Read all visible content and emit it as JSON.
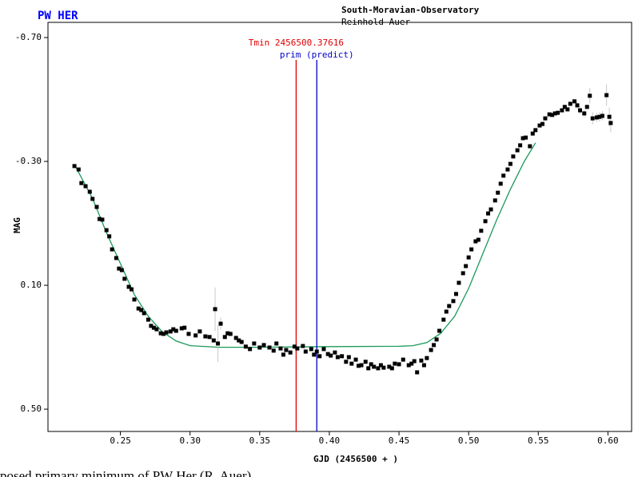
{
  "chart_data": {
    "type": "scatter",
    "title": "PW HER",
    "observatory": "South-Moravian-Observatory",
    "observer": "Reinhold Auer",
    "xlabel": "GJD (2456500 + )",
    "ylabel": "MAG",
    "caption": "posed primary minimum of PW Her (R. Auer)",
    "xlim": [
      0.198,
      0.617
    ],
    "ylim": [
      -0.749,
      0.572
    ],
    "y_inverted": true,
    "grid": false,
    "xticks": [
      0.25,
      {
        "value": 0.3,
        "label": "0.30"
      },
      0.35,
      {
        "value": 0.4,
        "label": "0.40"
      },
      0.45,
      {
        "value": 0.5,
        "label": "0.50"
      },
      0.55,
      {
        "value": 0.6,
        "label": "0.60"
      }
    ],
    "yticks": [
      {
        "value": -0.7,
        "label": "-0.70"
      },
      {
        "value": -0.3,
        "label": "-0.30"
      },
      {
        "value": 0.1,
        "label": "0.10"
      },
      {
        "value": 0.5,
        "label": "0.50"
      }
    ],
    "series": [
      {
        "color": "#000000",
        "error_color": "#c8c8c8",
        "x": [
          0.217,
          0.22,
          0.222,
          0.225,
          0.228,
          0.23,
          0.233,
          0.235,
          0.237,
          0.24,
          0.242,
          0.244,
          0.247,
          0.249,
          0.251,
          0.253,
          0.256,
          0.258,
          0.26,
          0.263,
          0.265,
          0.267,
          0.27,
          0.272,
          0.274,
          0.276,
          0.279,
          0.281,
          0.283,
          0.286,
          0.288,
          0.29,
          0.294,
          0.296,
          0.299,
          0.304,
          0.307,
          0.311,
          0.314,
          0.317,
          0.318,
          0.32,
          0.322,
          0.325,
          0.327,
          0.329,
          0.333,
          0.335,
          0.337,
          0.34,
          0.343,
          0.346,
          0.35,
          0.353,
          0.357,
          0.36,
          0.362,
          0.365,
          0.367,
          0.369,
          0.372,
          0.375,
          0.377,
          0.381,
          0.383,
          0.387,
          0.389,
          0.391,
          0.393,
          0.396,
          0.399,
          0.401,
          0.404,
          0.406,
          0.409,
          0.412,
          0.414,
          0.416,
          0.419,
          0.421,
          0.423,
          0.426,
          0.428,
          0.43,
          0.432,
          0.435,
          0.437,
          0.439,
          0.443,
          0.445,
          0.447,
          0.45,
          0.453,
          0.457,
          0.459,
          0.461,
          0.463,
          0.466,
          0.468,
          0.47,
          0.473,
          0.475,
          0.477,
          0.479,
          0.482,
          0.484,
          0.486,
          0.489,
          0.491,
          0.493,
          0.496,
          0.498,
          0.5,
          0.502,
          0.505,
          0.507,
          0.509,
          0.512,
          0.514,
          0.516,
          0.519,
          0.521,
          0.523,
          0.525,
          0.528,
          0.53,
          0.532,
          0.535,
          0.537,
          0.539,
          0.541,
          0.544,
          0.546,
          0.548,
          0.551,
          0.553,
          0.555,
          0.558,
          0.56,
          0.562,
          0.564,
          0.567,
          0.569,
          0.571,
          0.573,
          0.576,
          0.578,
          0.58,
          0.583,
          0.585,
          0.587,
          0.589,
          0.592,
          0.594,
          0.596,
          0.599,
          0.601,
          0.602
        ],
        "y": [
          -0.285,
          -0.274,
          -0.23,
          -0.22,
          -0.202,
          -0.179,
          -0.153,
          -0.114,
          -0.112,
          -0.078,
          -0.058,
          -0.016,
          0.012,
          0.046,
          0.051,
          0.079,
          0.105,
          0.113,
          0.146,
          0.175,
          0.18,
          0.19,
          0.211,
          0.231,
          0.237,
          0.242,
          0.255,
          0.257,
          0.252,
          0.249,
          0.242,
          0.247,
          0.239,
          0.237,
          0.257,
          0.262,
          0.249,
          0.265,
          0.267,
          0.278,
          0.177,
          0.288,
          0.224,
          0.267,
          0.255,
          0.257,
          0.27,
          0.278,
          0.283,
          0.298,
          0.306,
          0.288,
          0.301,
          0.293,
          0.301,
          0.311,
          0.288,
          0.304,
          0.324,
          0.309,
          0.317,
          0.298,
          0.304,
          0.296,
          0.314,
          0.306,
          0.324,
          0.314,
          0.329,
          0.306,
          0.322,
          0.327,
          0.317,
          0.332,
          0.329,
          0.347,
          0.332,
          0.353,
          0.34,
          0.36,
          0.358,
          0.347,
          0.368,
          0.355,
          0.363,
          0.368,
          0.358,
          0.366,
          0.363,
          0.368,
          0.353,
          0.355,
          0.34,
          0.358,
          0.353,
          0.345,
          0.381,
          0.343,
          0.358,
          0.335,
          0.309,
          0.293,
          0.275,
          0.247,
          0.211,
          0.185,
          0.167,
          0.151,
          0.128,
          0.092,
          0.061,
          0.038,
          0.01,
          -0.016,
          -0.042,
          -0.047,
          -0.076,
          -0.107,
          -0.132,
          -0.145,
          -0.174,
          -0.199,
          -0.228,
          -0.254,
          -0.274,
          -0.292,
          -0.316,
          -0.336,
          -0.352,
          -0.375,
          -0.377,
          -0.349,
          -0.39,
          -0.401,
          -0.416,
          -0.421,
          -0.439,
          -0.452,
          -0.45,
          -0.455,
          -0.457,
          -0.465,
          -0.476,
          -0.468,
          -0.486,
          -0.494,
          -0.481,
          -0.465,
          -0.455,
          -0.476,
          -0.512,
          -0.439,
          -0.442,
          -0.444,
          -0.447,
          -0.514,
          -0.444,
          -0.424
        ],
        "errors": [
          0.005,
          0.005,
          0.005,
          0.005,
          0.005,
          0.005,
          0.005,
          0.005,
          0.005,
          0.005,
          0.005,
          0.005,
          0.005,
          0.005,
          0.005,
          0.005,
          0.005,
          0.005,
          0.005,
          0.005,
          0.005,
          0.005,
          0.005,
          0.005,
          0.005,
          0.005,
          0.005,
          0.005,
          0.005,
          0.005,
          0.005,
          0.005,
          0.005,
          0.005,
          0.005,
          0.005,
          0.005,
          0.005,
          0.005,
          0.005,
          0.07,
          0.06,
          0.02,
          0.005,
          0.005,
          0.005,
          0.005,
          0.005,
          0.005,
          0.005,
          0.005,
          0.005,
          0.005,
          0.005,
          0.005,
          0.005,
          0.005,
          0.005,
          0.005,
          0.005,
          0.005,
          0.005,
          0.005,
          0.005,
          0.005,
          0.005,
          0.005,
          0.005,
          0.005,
          0.005,
          0.005,
          0.005,
          0.005,
          0.005,
          0.005,
          0.005,
          0.005,
          0.005,
          0.005,
          0.005,
          0.005,
          0.005,
          0.005,
          0.005,
          0.005,
          0.005,
          0.005,
          0.005,
          0.005,
          0.005,
          0.005,
          0.005,
          0.005,
          0.005,
          0.005,
          0.005,
          0.005,
          0.005,
          0.005,
          0.005,
          0.005,
          0.005,
          0.005,
          0.005,
          0.005,
          0.005,
          0.005,
          0.005,
          0.005,
          0.005,
          0.005,
          0.005,
          0.005,
          0.005,
          0.005,
          0.005,
          0.005,
          0.005,
          0.005,
          0.005,
          0.005,
          0.005,
          0.005,
          0.005,
          0.005,
          0.005,
          0.005,
          0.005,
          0.005,
          0.005,
          0.005,
          0.005,
          0.005,
          0.005,
          0.005,
          0.005,
          0.005,
          0.005,
          0.005,
          0.005,
          0.005,
          0.005,
          0.005,
          0.005,
          0.005,
          0.005,
          0.012,
          0.012,
          0.012,
          0.005,
          0.025,
          0.02,
          0.015,
          0.015,
          0.015,
          0.035,
          0.03,
          0.03
        ]
      }
    ],
    "fit": {
      "color": "#1a9a5a",
      "x": [
        0.217,
        0.23,
        0.24,
        0.25,
        0.26,
        0.27,
        0.28,
        0.29,
        0.3,
        0.32,
        0.35,
        0.4,
        0.45,
        0.46,
        0.47,
        0.48,
        0.49,
        0.5,
        0.51,
        0.52,
        0.53,
        0.54,
        0.548
      ],
      "y": [
        -0.29,
        -0.18,
        -0.07,
        0.03,
        0.13,
        0.2,
        0.25,
        0.28,
        0.295,
        0.3,
        0.3,
        0.298,
        0.297,
        0.295,
        0.285,
        0.255,
        0.2,
        0.11,
        0.0,
        -0.11,
        -0.21,
        -0.3,
        -0.36
      ]
    },
    "vlines": [
      {
        "x": 0.37616,
        "label": "Tmin 2456500.37616",
        "color": "#e00000"
      },
      {
        "x": 0.391,
        "label": "prim (predict)",
        "color": "#0000cc"
      }
    ]
  }
}
